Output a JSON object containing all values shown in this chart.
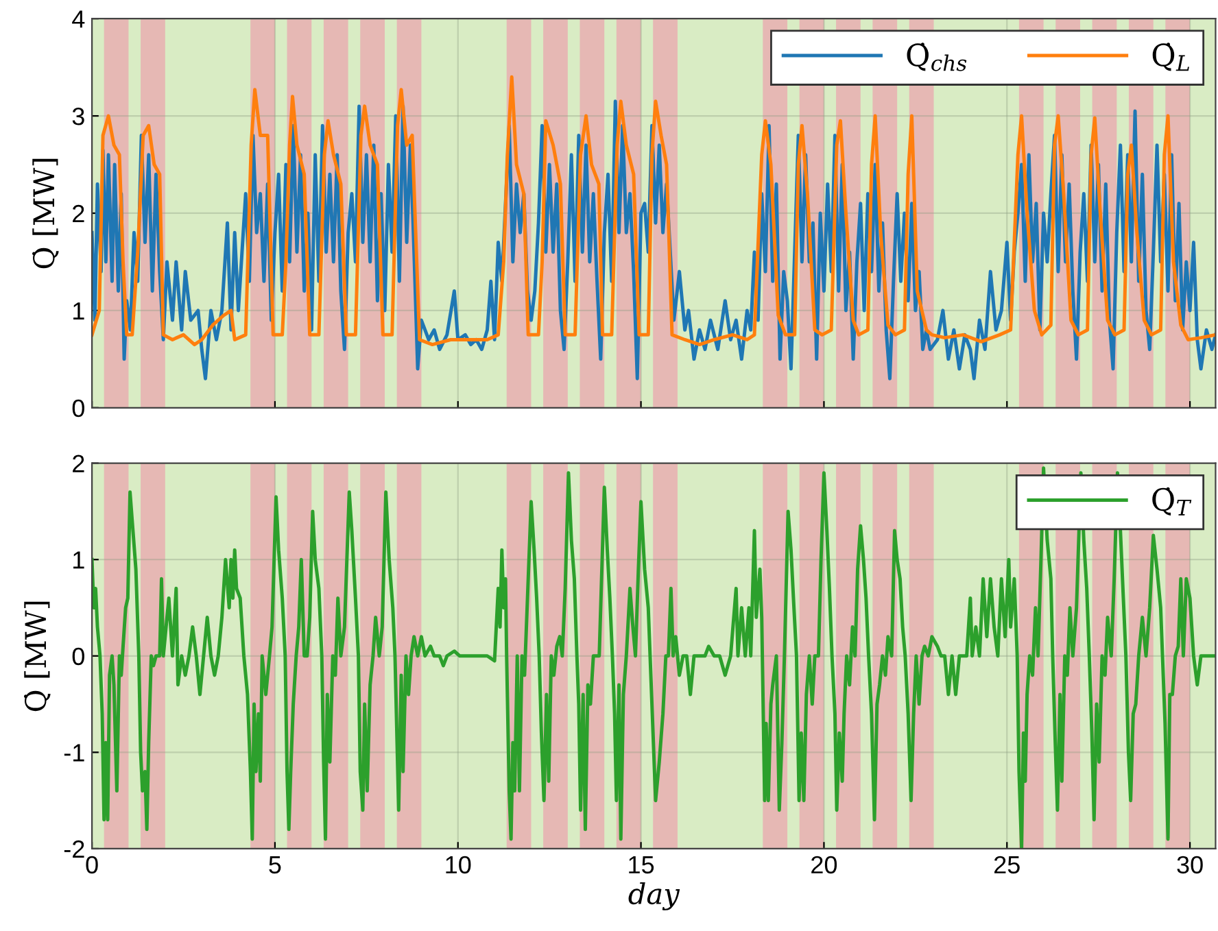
{
  "chart_data": [
    {
      "type": "line",
      "ylabel": "Q̇ [MW]",
      "xlim": [
        0,
        30.7
      ],
      "xticks": [
        0,
        5,
        10,
        15,
        20,
        25,
        30
      ],
      "ylim": [
        0,
        4
      ],
      "yticks": [
        0,
        1,
        2,
        3,
        4
      ],
      "tick_labels": "y",
      "grid": true,
      "legend": "top right",
      "line_style": "solid",
      "marker": "none",
      "bands": [
        {
          "axis": "x",
          "from": 0,
          "to": 30.7,
          "label": null,
          "color": "#d9ecc4"
        },
        {
          "axis": "x",
          "from": 0.33,
          "to": 1.0,
          "label": null,
          "color": "#e6b8b4"
        },
        {
          "axis": "x",
          "from": 1.33,
          "to": 2.0,
          "label": null,
          "color": "#e6b8b4"
        },
        {
          "axis": "x",
          "from": 4.33,
          "to": 5.0,
          "label": null,
          "color": "#e6b8b4"
        },
        {
          "axis": "x",
          "from": 5.33,
          "to": 6.0,
          "label": null,
          "color": "#e6b8b4"
        },
        {
          "axis": "x",
          "from": 6.33,
          "to": 7.0,
          "label": null,
          "color": "#e6b8b4"
        },
        {
          "axis": "x",
          "from": 7.33,
          "to": 8.0,
          "label": null,
          "color": "#e6b8b4"
        },
        {
          "axis": "x",
          "from": 8.33,
          "to": 9.0,
          "label": null,
          "color": "#e6b8b4"
        },
        {
          "axis": "x",
          "from": 11.33,
          "to": 12.0,
          "label": null,
          "color": "#e6b8b4"
        },
        {
          "axis": "x",
          "from": 12.33,
          "to": 13.0,
          "label": null,
          "color": "#e6b8b4"
        },
        {
          "axis": "x",
          "from": 13.33,
          "to": 14.0,
          "label": null,
          "color": "#e6b8b4"
        },
        {
          "axis": "x",
          "from": 14.33,
          "to": 15.0,
          "label": null,
          "color": "#e6b8b4"
        },
        {
          "axis": "x",
          "from": 15.33,
          "to": 16.0,
          "label": null,
          "color": "#e6b8b4"
        },
        {
          "axis": "x",
          "from": 18.33,
          "to": 19.0,
          "label": null,
          "color": "#e6b8b4"
        },
        {
          "axis": "x",
          "from": 19.33,
          "to": 20.0,
          "label": null,
          "color": "#e6b8b4"
        },
        {
          "axis": "x",
          "from": 20.33,
          "to": 21.0,
          "label": null,
          "color": "#e6b8b4"
        },
        {
          "axis": "x",
          "from": 21.33,
          "to": 22.0,
          "label": null,
          "color": "#e6b8b4"
        },
        {
          "axis": "x",
          "from": 22.33,
          "to": 23.0,
          "label": null,
          "color": "#e6b8b4"
        },
        {
          "axis": "x",
          "from": 25.33,
          "to": 26.0,
          "label": null,
          "color": "#e6b8b4"
        },
        {
          "axis": "x",
          "from": 26.33,
          "to": 27.0,
          "label": null,
          "color": "#e6b8b4"
        },
        {
          "axis": "x",
          "from": 27.33,
          "to": 28.0,
          "label": null,
          "color": "#e6b8b4"
        },
        {
          "axis": "x",
          "from": 28.33,
          "to": 29.0,
          "label": null,
          "color": "#e6b8b4"
        },
        {
          "axis": "x",
          "from": 29.33,
          "to": 30.0,
          "label": null,
          "color": "#e6b8b4"
        }
      ],
      "series": [
        {
          "name": "Q̇$_{chs}$",
          "color": "#1f77b4",
          "x": [
            0.0,
            0.08,
            0.15,
            0.25,
            0.3,
            0.38,
            0.45,
            0.55,
            0.62,
            0.72,
            0.8,
            0.88,
            0.95,
            1.05,
            1.15,
            1.25,
            1.35,
            1.45,
            1.55,
            1.65,
            1.75,
            1.85,
            1.95,
            2.05,
            2.2,
            2.3,
            2.45,
            2.55,
            2.7,
            2.9,
            3.0,
            3.1,
            3.25,
            3.4,
            3.55,
            3.7,
            3.8,
            3.9,
            4.0,
            4.1,
            4.2,
            4.3,
            4.4,
            4.5,
            4.6,
            4.7,
            4.8,
            4.9,
            5.0,
            5.1,
            5.2,
            5.3,
            5.4,
            5.5,
            5.6,
            5.7,
            5.8,
            5.9,
            6.0,
            6.1,
            6.2,
            6.3,
            6.4,
            6.5,
            6.6,
            6.7,
            6.8,
            6.9,
            7.0,
            7.1,
            7.2,
            7.3,
            7.4,
            7.5,
            7.6,
            7.7,
            7.8,
            7.9,
            8.0,
            8.1,
            8.2,
            8.3,
            8.4,
            8.5,
            8.6,
            8.7,
            8.8,
            8.9,
            9.0,
            9.2,
            9.35,
            9.5,
            9.7,
            9.9,
            10.0,
            10.2,
            10.35,
            10.5,
            10.65,
            10.8,
            10.9,
            11.0,
            11.1,
            11.2,
            11.3,
            11.4,
            11.5,
            11.6,
            11.7,
            11.8,
            11.9,
            12.0,
            12.1,
            12.2,
            12.3,
            12.4,
            12.5,
            12.6,
            12.7,
            12.8,
            12.9,
            13.0,
            13.1,
            13.2,
            13.3,
            13.4,
            13.5,
            13.6,
            13.7,
            13.8,
            13.9,
            14.0,
            14.1,
            14.2,
            14.3,
            14.4,
            14.5,
            14.6,
            14.7,
            14.8,
            14.9,
            15.0,
            15.1,
            15.2,
            15.3,
            15.4,
            15.5,
            15.6,
            15.7,
            15.8,
            15.9,
            16.05,
            16.2,
            16.3,
            16.45,
            16.6,
            16.75,
            16.9,
            17.1,
            17.3,
            17.45,
            17.6,
            17.75,
            17.9,
            18.0,
            18.1,
            18.2,
            18.3,
            18.4,
            18.5,
            18.6,
            18.7,
            18.8,
            18.9,
            19.0,
            19.1,
            19.2,
            19.3,
            19.4,
            19.5,
            19.6,
            19.7,
            19.8,
            19.9,
            20.0,
            20.1,
            20.2,
            20.3,
            20.4,
            20.5,
            20.6,
            20.7,
            20.8,
            20.9,
            21.0,
            21.1,
            21.2,
            21.3,
            21.4,
            21.5,
            21.6,
            21.7,
            21.8,
            21.9,
            22.0,
            22.1,
            22.2,
            22.3,
            22.4,
            22.5,
            22.6,
            22.7,
            22.8,
            22.9,
            23.1,
            23.25,
            23.4,
            23.55,
            23.7,
            23.85,
            24.0,
            24.1,
            24.25,
            24.4,
            24.55,
            24.7,
            24.85,
            25.0,
            25.1,
            25.2,
            25.3,
            25.4,
            25.5,
            25.6,
            25.7,
            25.8,
            25.9,
            26.0,
            26.1,
            26.2,
            26.3,
            26.4,
            26.5,
            26.6,
            26.7,
            26.8,
            26.9,
            27.0,
            27.1,
            27.2,
            27.3,
            27.4,
            27.5,
            27.6,
            27.7,
            27.8,
            27.9,
            28.0,
            28.1,
            28.2,
            28.3,
            28.4,
            28.5,
            28.6,
            28.7,
            28.8,
            28.9,
            29.0,
            29.1,
            29.2,
            29.3,
            29.4,
            29.5,
            29.6,
            29.7,
            29.8,
            29.9,
            30.0,
            30.1,
            30.2,
            30.3,
            30.45,
            30.6,
            30.7
          ],
          "values": [
            1.8,
            0.9,
            2.3,
            1.4,
            2.65,
            1.5,
            2.6,
            1.3,
            2.5,
            1.2,
            2.2,
            0.5,
            1.1,
            0.8,
            1.8,
            1.3,
            2.8,
            1.7,
            2.6,
            1.2,
            2.4,
            1.4,
            0.7,
            1.5,
            0.9,
            1.5,
            0.8,
            1.4,
            0.9,
            1.0,
            0.6,
            0.3,
            1.0,
            0.7,
            1.0,
            1.9,
            0.8,
            1.8,
            1.0,
            1.6,
            2.2,
            1.3,
            2.8,
            1.8,
            2.2,
            1.3,
            2.3,
            0.9,
            1.8,
            2.4,
            1.2,
            2.5,
            1.5,
            2.9,
            1.6,
            2.6,
            1.2,
            2.0,
            0.8,
            2.6,
            1.3,
            2.9,
            1.6,
            2.4,
            1.5,
            2.6,
            1.2,
            0.6,
            1.8,
            2.2,
            1.5,
            3.1,
            1.7,
            2.6,
            1.5,
            2.7,
            1.1,
            2.2,
            1.0,
            2.5,
            1.6,
            3.0,
            1.3,
            3.1,
            1.7,
            2.7,
            1.6,
            0.4,
            0.9,
            0.7,
            0.8,
            0.6,
            0.75,
            1.2,
            0.7,
            0.75,
            0.65,
            0.7,
            0.6,
            0.8,
            1.3,
            0.7,
            1.7,
            1.3,
            2.1,
            2.9,
            1.5,
            2.3,
            1.8,
            2.2,
            1.2,
            0.9,
            1.2,
            1.9,
            2.9,
            1.6,
            2.5,
            1.6,
            2.3,
            1.0,
            0.6,
            1.5,
            2.6,
            1.3,
            2.8,
            1.6,
            2.7,
            1.5,
            2.2,
            1.3,
            0.5,
            1.8,
            2.4,
            1.3,
            3.15,
            1.8,
            2.9,
            1.8,
            2.2,
            1.4,
            0.3,
            2.0,
            2.1,
            1.6,
            2.9,
            1.9,
            2.7,
            1.8,
            2.3,
            1.6,
            0.9,
            1.4,
            0.8,
            1.0,
            0.5,
            0.8,
            0.6,
            0.9,
            0.6,
            1.1,
            0.7,
            0.9,
            0.5,
            1.0,
            0.8,
            1.6,
            0.9,
            2.2,
            1.4,
            2.9,
            1.3,
            2.3,
            0.5,
            1.4,
            1.1,
            0.4,
            1.6,
            2.8,
            1.5,
            2.6,
            1.5,
            1.9,
            0.5,
            2.0,
            1.2,
            2.3,
            1.4,
            2.8,
            1.2,
            2.5,
            1.0,
            1.6,
            0.5,
            1.5,
            2.1,
            1.0,
            2.2,
            1.4,
            2.5,
            1.2,
            1.9,
            0.8,
            0.3,
            1.3,
            2.2,
            1.3,
            2.0,
            1.1,
            2.1,
            1.0,
            1.4,
            0.6,
            0.8,
            0.6,
            0.7,
            1.0,
            0.5,
            0.8,
            0.4,
            0.75,
            0.6,
            0.3,
            0.9,
            0.6,
            1.4,
            0.8,
            1.0,
            1.7,
            0.9,
            1.6,
            2.0,
            2.5,
            1.3,
            2.6,
            1.5,
            2.1,
            0.8,
            2.0,
            1.5,
            2.2,
            2.8,
            1.4,
            2.6,
            1.5,
            2.3,
            1.2,
            0.5,
            1.6,
            2.2,
            1.3,
            2.7,
            1.5,
            2.5,
            1.2,
            2.3,
            0.9,
            0.4,
            1.8,
            2.7,
            1.4,
            2.6,
            1.5,
            3.05,
            1.3,
            2.4,
            1.0,
            0.6,
            1.6,
            2.7,
            1.5,
            2.4,
            1.2,
            2.6,
            1.1,
            2.1,
            0.8,
            1.5,
            1.0,
            1.7,
            0.7,
            0.4,
            0.8,
            0.6,
            0.75
          ]
        },
        {
          "name": "Q̇$_{L}$",
          "color": "#ff7f0e",
          "x": [
            0.0,
            0.2,
            0.3,
            0.45,
            0.6,
            0.75,
            0.85,
            0.95,
            1.1,
            1.25,
            1.4,
            1.55,
            1.7,
            1.85,
            1.95,
            2.2,
            2.5,
            2.8,
            3.0,
            3.3,
            3.6,
            3.8,
            3.9,
            4.2,
            4.35,
            4.45,
            4.6,
            4.8,
            4.95,
            5.2,
            5.3,
            5.4,
            5.48,
            5.6,
            5.8,
            5.95,
            6.2,
            6.35,
            6.45,
            6.6,
            6.8,
            6.95,
            7.2,
            7.35,
            7.45,
            7.6,
            7.8,
            7.95,
            8.2,
            8.35,
            8.45,
            8.6,
            8.75,
            8.95,
            9.3,
            9.8,
            10.3,
            10.8,
            11.1,
            11.25,
            11.35,
            11.47,
            11.6,
            11.8,
            11.92,
            12.2,
            12.3,
            12.4,
            12.6,
            12.8,
            12.93,
            13.2,
            13.35,
            13.5,
            13.65,
            13.85,
            13.95,
            14.2,
            14.35,
            14.45,
            14.6,
            14.8,
            14.95,
            15.2,
            15.3,
            15.4,
            15.55,
            15.7,
            15.85,
            16.2,
            16.6,
            17.0,
            17.5,
            17.9,
            18.1,
            18.3,
            18.4,
            18.55,
            18.75,
            18.95,
            19.2,
            19.3,
            19.4,
            19.55,
            19.75,
            19.95,
            20.2,
            20.35,
            20.45,
            20.6,
            20.8,
            20.95,
            21.2,
            21.3,
            21.4,
            21.55,
            21.75,
            21.95,
            22.2,
            22.3,
            22.4,
            22.55,
            22.8,
            22.95,
            23.3,
            23.8,
            24.3,
            24.8,
            25.1,
            25.3,
            25.4,
            25.55,
            25.75,
            25.95,
            26.2,
            26.3,
            26.4,
            26.55,
            26.75,
            26.95,
            27.2,
            27.3,
            27.4,
            27.55,
            27.75,
            27.95,
            28.2,
            28.3,
            28.4,
            28.55,
            28.75,
            28.95,
            29.2,
            29.3,
            29.4,
            29.55,
            29.75,
            29.95,
            30.3,
            30.7
          ],
          "values": [
            0.75,
            1.0,
            2.8,
            3.0,
            2.7,
            2.6,
            1.5,
            0.75,
            0.75,
            1.6,
            2.8,
            2.9,
            2.5,
            2.4,
            0.75,
            0.7,
            0.75,
            0.65,
            0.7,
            0.85,
            0.95,
            1.0,
            0.7,
            0.75,
            2.7,
            3.27,
            2.8,
            2.8,
            0.75,
            0.75,
            1.5,
            2.7,
            3.2,
            2.7,
            2.4,
            0.75,
            0.75,
            2.6,
            2.95,
            2.6,
            2.3,
            0.75,
            0.75,
            2.8,
            3.1,
            2.7,
            2.5,
            0.75,
            0.75,
            2.9,
            3.27,
            2.7,
            2.8,
            0.7,
            0.65,
            0.7,
            0.7,
            0.7,
            0.75,
            1.5,
            2.6,
            3.4,
            2.5,
            2.2,
            0.75,
            0.75,
            1.5,
            2.95,
            2.7,
            2.3,
            0.75,
            0.75,
            2.6,
            3.0,
            2.5,
            2.3,
            0.75,
            0.75,
            2.7,
            3.15,
            2.7,
            2.4,
            0.75,
            0.75,
            2.6,
            3.15,
            2.8,
            2.5,
            0.75,
            0.7,
            0.65,
            0.7,
            0.75,
            0.7,
            0.75,
            2.6,
            2.95,
            2.5,
            0.95,
            0.75,
            0.75,
            2.5,
            2.9,
            2.2,
            0.8,
            0.75,
            0.8,
            2.7,
            2.95,
            2.0,
            0.9,
            0.75,
            0.8,
            2.5,
            3.0,
            1.8,
            0.85,
            0.75,
            0.8,
            2.4,
            3.0,
            1.2,
            0.8,
            0.75,
            0.72,
            0.75,
            0.68,
            0.75,
            0.8,
            2.6,
            3.0,
            2.0,
            1.0,
            0.75,
            0.85,
            2.7,
            3.0,
            2.2,
            0.9,
            0.75,
            0.8,
            2.6,
            2.98,
            2.0,
            0.9,
            0.75,
            0.8,
            2.4,
            2.7,
            1.8,
            0.9,
            0.75,
            0.8,
            2.6,
            3.0,
            1.5,
            0.85,
            0.7,
            0.72,
            0.75
          ]
        }
      ]
    },
    {
      "type": "line",
      "xlabel": "day",
      "ylabel": "Q̇ [MW]",
      "xlim": [
        0,
        30.7
      ],
      "xticks": [
        0,
        5,
        10,
        15,
        20,
        25,
        30
      ],
      "ylim": [
        -2,
        2
      ],
      "yticks": [
        -2,
        -1,
        0,
        1,
        2
      ],
      "grid": true,
      "legend": "top right",
      "line_style": "solid",
      "marker": "none",
      "bands": [
        {
          "axis": "x",
          "from": 0,
          "to": 30.7,
          "label": null,
          "color": "#d9ecc4"
        },
        {
          "axis": "x",
          "from": 0.33,
          "to": 1.0,
          "label": null,
          "color": "#e6b8b4"
        },
        {
          "axis": "x",
          "from": 1.33,
          "to": 2.0,
          "label": null,
          "color": "#e6b8b4"
        },
        {
          "axis": "x",
          "from": 4.33,
          "to": 5.0,
          "label": null,
          "color": "#e6b8b4"
        },
        {
          "axis": "x",
          "from": 5.33,
          "to": 6.0,
          "label": null,
          "color": "#e6b8b4"
        },
        {
          "axis": "x",
          "from": 6.33,
          "to": 7.0,
          "label": null,
          "color": "#e6b8b4"
        },
        {
          "axis": "x",
          "from": 7.33,
          "to": 8.0,
          "label": null,
          "color": "#e6b8b4"
        },
        {
          "axis": "x",
          "from": 8.33,
          "to": 9.0,
          "label": null,
          "color": "#e6b8b4"
        },
        {
          "axis": "x",
          "from": 11.33,
          "to": 12.0,
          "label": null,
          "color": "#e6b8b4"
        },
        {
          "axis": "x",
          "from": 12.33,
          "to": 13.0,
          "label": null,
          "color": "#e6b8b4"
        },
        {
          "axis": "x",
          "from": 13.33,
          "to": 14.0,
          "label": null,
          "color": "#e6b8b4"
        },
        {
          "axis": "x",
          "from": 14.33,
          "to": 15.0,
          "label": null,
          "color": "#e6b8b4"
        },
        {
          "axis": "x",
          "from": 15.33,
          "to": 16.0,
          "label": null,
          "color": "#e6b8b4"
        },
        {
          "axis": "x",
          "from": 18.33,
          "to": 19.0,
          "label": null,
          "color": "#e6b8b4"
        },
        {
          "axis": "x",
          "from": 19.33,
          "to": 20.0,
          "label": null,
          "color": "#e6b8b4"
        },
        {
          "axis": "x",
          "from": 20.33,
          "to": 21.0,
          "label": null,
          "color": "#e6b8b4"
        },
        {
          "axis": "x",
          "from": 21.33,
          "to": 22.0,
          "label": null,
          "color": "#e6b8b4"
        },
        {
          "axis": "x",
          "from": 22.33,
          "to": 23.0,
          "label": null,
          "color": "#e6b8b4"
        },
        {
          "axis": "x",
          "from": 25.33,
          "to": 26.0,
          "label": null,
          "color": "#e6b8b4"
        },
        {
          "axis": "x",
          "from": 26.33,
          "to": 27.0,
          "label": null,
          "color": "#e6b8b4"
        },
        {
          "axis": "x",
          "from": 27.33,
          "to": 28.0,
          "label": null,
          "color": "#e6b8b4"
        },
        {
          "axis": "x",
          "from": 28.33,
          "to": 29.0,
          "label": null,
          "color": "#e6b8b4"
        },
        {
          "axis": "x",
          "from": 29.33,
          "to": 30.0,
          "label": null,
          "color": "#e6b8b4"
        }
      ],
      "series": [
        {
          "name": "Q̇$_{T}$",
          "color": "#2ca02c",
          "x": [
            0.0,
            0.05,
            0.1,
            0.15,
            0.22,
            0.28,
            0.33,
            0.38,
            0.43,
            0.48,
            0.55,
            0.6,
            0.68,
            0.75,
            0.8,
            0.85,
            0.92,
            0.98,
            1.04,
            1.12,
            1.2,
            1.28,
            1.33,
            1.38,
            1.45,
            1.5,
            1.55,
            1.62,
            1.68,
            1.75,
            1.85,
            1.9,
            1.95,
            2.1,
            2.2,
            2.3,
            2.35,
            2.45,
            2.55,
            2.65,
            2.75,
            2.85,
            2.95,
            3.05,
            3.15,
            3.25,
            3.35,
            3.45,
            3.55,
            3.65,
            3.75,
            3.8,
            3.85,
            3.9,
            3.95,
            4.05,
            4.15,
            4.25,
            4.33,
            4.38,
            4.43,
            4.48,
            4.55,
            4.6,
            4.65,
            4.75,
            4.85,
            4.92,
            5.03,
            5.1,
            5.2,
            5.28,
            5.33,
            5.38,
            5.43,
            5.5,
            5.58,
            5.65,
            5.72,
            5.8,
            5.88,
            5.95,
            6.03,
            6.1,
            6.2,
            6.28,
            6.33,
            6.38,
            6.43,
            6.5,
            6.58,
            6.65,
            6.72,
            6.8,
            6.9,
            7.03,
            7.1,
            7.2,
            7.28,
            7.33,
            7.4,
            7.45,
            7.52,
            7.6,
            7.68,
            7.75,
            7.85,
            7.93,
            8.03,
            8.12,
            8.22,
            8.28,
            8.33,
            8.38,
            8.45,
            8.5,
            8.58,
            8.65,
            8.72,
            8.8,
            8.9,
            9.0,
            9.1,
            9.25,
            9.35,
            9.5,
            9.6,
            9.7,
            9.9,
            10.05,
            10.2,
            10.4,
            10.6,
            10.8,
            11.0,
            11.1,
            11.15,
            11.2,
            11.25,
            11.3,
            11.33,
            11.4,
            11.45,
            11.5,
            11.55,
            11.62,
            11.68,
            11.75,
            11.82,
            11.9,
            12.0,
            12.08,
            12.15,
            12.22,
            12.28,
            12.35,
            12.42,
            12.48,
            12.55,
            12.62,
            12.7,
            12.78,
            12.85,
            12.93,
            13.02,
            13.1,
            13.18,
            13.25,
            13.3,
            13.35,
            13.42,
            13.48,
            13.55,
            13.62,
            13.7,
            13.78,
            13.86,
            14.0,
            14.08,
            14.15,
            14.22,
            14.28,
            14.33,
            14.4,
            14.45,
            14.52,
            14.6,
            14.7,
            14.78,
            14.85,
            14.93,
            15.0,
            15.1,
            15.2,
            15.25,
            15.33,
            15.4,
            15.5,
            15.6,
            15.68,
            15.75,
            15.82,
            15.88,
            15.95,
            16.05,
            16.15,
            16.25,
            16.35,
            16.45,
            16.6,
            16.75,
            16.85,
            17.0,
            17.15,
            17.3,
            17.45,
            17.6,
            17.65,
            17.75,
            17.85,
            17.95,
            18.0,
            18.1,
            18.15,
            18.25,
            18.3,
            18.38,
            18.42,
            18.48,
            18.55,
            18.6,
            18.7,
            18.78,
            18.85,
            18.92,
            19.02,
            19.1,
            19.18,
            19.25,
            19.32,
            19.38,
            19.45,
            19.52,
            19.6,
            19.68,
            19.75,
            19.85,
            19.92,
            20.0,
            20.08,
            20.15,
            20.22,
            20.3,
            20.35,
            20.42,
            20.5,
            20.55,
            20.62,
            20.7,
            20.78,
            20.85,
            20.92,
            21.0,
            21.08,
            21.15,
            21.22,
            21.3,
            21.38,
            21.45,
            21.52,
            21.6,
            21.68,
            21.75,
            21.85,
            21.93,
            22.0,
            22.08,
            22.15,
            22.22,
            22.3,
            22.38,
            22.45,
            22.52,
            22.6,
            22.68,
            22.75,
            22.85,
            22.95,
            23.1,
            23.2,
            23.3,
            23.4,
            23.5,
            23.6,
            23.7,
            23.9,
            24.0,
            24.05,
            24.15,
            24.25,
            24.35,
            24.45,
            24.55,
            24.65,
            24.75,
            24.85,
            24.95,
            25.05,
            25.1,
            25.2,
            25.28,
            25.33,
            25.4,
            25.45,
            25.5,
            25.55,
            25.62,
            25.7,
            25.78,
            25.85,
            25.93,
            26.0,
            26.1,
            26.2,
            26.25,
            26.32,
            26.38,
            26.45,
            26.5,
            26.58,
            26.65,
            26.72,
            26.8,
            26.9,
            27.02,
            27.1,
            27.18,
            27.25,
            27.32,
            27.38,
            27.45,
            27.52,
            27.6,
            27.68,
            27.75,
            27.85,
            27.93,
            28.02,
            28.1,
            28.18,
            28.25,
            28.32,
            28.38,
            28.45,
            28.52,
            28.6,
            28.7,
            28.8,
            28.9,
            29.0,
            29.1,
            29.2,
            29.25,
            29.32,
            29.4,
            29.45,
            29.52,
            29.6,
            29.68,
            29.75,
            29.82,
            29.9,
            30.0,
            30.1,
            30.2,
            30.3,
            30.5,
            30.7
          ],
          "values": [
            1.0,
            0.5,
            0.7,
            0.3,
            0.0,
            -0.6,
            -1.7,
            -0.9,
            -1.7,
            -0.2,
            0.0,
            -0.3,
            -1.4,
            0.0,
            -0.2,
            0.1,
            0.5,
            0.6,
            1.7,
            1.3,
            0.9,
            0.0,
            -1.0,
            -1.4,
            -1.2,
            -1.8,
            -0.9,
            0.0,
            -0.1,
            0.0,
            0.0,
            0.8,
            0.0,
            0.6,
            0.0,
            0.7,
            -0.3,
            0.0,
            -0.2,
            0.0,
            0.3,
            0.0,
            -0.4,
            0.0,
            0.4,
            0.0,
            -0.2,
            0.0,
            0.4,
            1.0,
            0.5,
            1.0,
            0.6,
            1.1,
            0.7,
            0.6,
            0.0,
            -0.4,
            -1.2,
            -1.9,
            -0.5,
            -1.2,
            -0.6,
            -1.3,
            0.0,
            -0.4,
            0.0,
            0.3,
            1.65,
            1.1,
            0.6,
            0.0,
            -1.2,
            -1.8,
            -1.2,
            -0.5,
            0.0,
            0.3,
            1.0,
            0.0,
            0.0,
            0.4,
            1.5,
            1.0,
            0.7,
            0.0,
            -1.1,
            -1.9,
            -0.4,
            -1.1,
            0.0,
            -0.2,
            0.6,
            0.0,
            0.3,
            1.7,
            1.3,
            0.6,
            0.0,
            -1.2,
            -1.6,
            -0.5,
            -1.4,
            -0.3,
            0.0,
            0.4,
            0.0,
            0.3,
            1.7,
            1.0,
            0.5,
            0.0,
            -0.8,
            -1.6,
            -0.2,
            -1.2,
            0.0,
            -0.4,
            0.0,
            0.2,
            0.0,
            0.2,
            0.0,
            0.1,
            0.0,
            0.0,
            -0.1,
            0.0,
            0.05,
            0.0,
            0.0,
            0.0,
            0.0,
            0.0,
            -0.05,
            0.7,
            0.3,
            1.1,
            0.5,
            0.8,
            0.0,
            -1.4,
            -1.9,
            -0.9,
            -1.4,
            0.0,
            -1.4,
            0.0,
            -0.2,
            0.6,
            1.6,
            1.1,
            0.6,
            0.0,
            -0.8,
            -1.5,
            -0.4,
            -1.3,
            0.0,
            -0.2,
            0.1,
            0.2,
            0.0,
            0.7,
            1.9,
            1.2,
            0.8,
            0.0,
            -0.5,
            -1.6,
            -0.4,
            -1.8,
            -0.3,
            -0.5,
            0.0,
            0.0,
            0.0,
            1.75,
            1.1,
            0.6,
            0.0,
            -0.6,
            -1.5,
            -0.3,
            -1.9,
            -0.4,
            0.0,
            0.7,
            0.3,
            0.0,
            0.9,
            1.6,
            0.9,
            0.5,
            0.0,
            -0.8,
            -1.5,
            -1.1,
            -0.6,
            0.0,
            0.0,
            0.7,
            0.0,
            0.2,
            -0.2,
            0.0,
            0.0,
            -0.4,
            0.0,
            0.0,
            0.0,
            0.1,
            0.0,
            0.0,
            -0.2,
            0.0,
            0.7,
            0.0,
            0.5,
            0.0,
            0.5,
            0.0,
            1.3,
            0.4,
            0.9,
            0.4,
            -1.5,
            -0.7,
            -1.5,
            -0.5,
            -0.3,
            0.0,
            -1.6,
            -0.9,
            0.0,
            1.5,
            1.1,
            0.5,
            0.0,
            -1.5,
            -0.8,
            -1.5,
            -0.4,
            0.0,
            -0.5,
            0.0,
            0.0,
            1.0,
            1.9,
            1.3,
            0.7,
            0.0,
            -0.6,
            -1.6,
            -0.8,
            -1.3,
            -0.6,
            0.0,
            -0.3,
            0.3,
            0.0,
            0.9,
            1.35,
            1.0,
            0.6,
            0.0,
            -0.6,
            -1.7,
            -0.5,
            -0.3,
            0.0,
            -0.2,
            0.2,
            0.0,
            1.3,
            1.0,
            0.8,
            0.3,
            0.0,
            -0.6,
            -1.5,
            -0.6,
            0.0,
            -0.5,
            0.0,
            0.1,
            0.0,
            0.2,
            0.1,
            0.0,
            0.0,
            -0.4,
            0.0,
            -0.4,
            0.0,
            0.0,
            0.6,
            0.0,
            0.3,
            0.0,
            0.8,
            0.2,
            0.8,
            0.3,
            0.0,
            0.8,
            0.2,
            1.0,
            0.3,
            0.8,
            0.0,
            -1.2,
            -2.0,
            -0.8,
            -1.3,
            -0.4,
            0.0,
            -0.2,
            0.5,
            0.0,
            1.0,
            1.95,
            1.2,
            0.8,
            0.0,
            -0.9,
            -1.6,
            -0.4,
            -1.3,
            0.0,
            -0.2,
            0.5,
            0.0,
            0.5,
            1.9,
            1.2,
            0.7,
            0.0,
            -0.8,
            -1.7,
            -0.5,
            -1.1,
            0.0,
            -0.2,
            0.4,
            0.0,
            0.8,
            1.9,
            1.3,
            0.6,
            0.0,
            -1.0,
            -1.5,
            -0.6,
            -0.5,
            0.0,
            0.4,
            0.0,
            0.5,
            1.25,
            0.9,
            0.5,
            0.0,
            -0.7,
            -1.9,
            -0.4,
            -0.4,
            0.0,
            0.1,
            0.8,
            0.0,
            0.8,
            0.6,
            0.0,
            -0.3,
            0.0,
            0.0,
            0.0
          ]
        }
      ]
    }
  ]
}
